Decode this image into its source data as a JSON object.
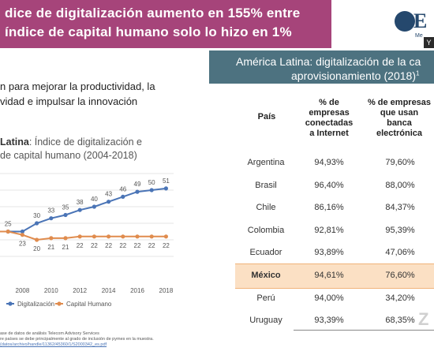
{
  "title": {
    "line1": "dice de digitalización aumento en 155% entre",
    "line2": "índice de capital humano solo lo hizo en 1%"
  },
  "logo": {
    "letter": "E",
    "sub": "Me",
    "corner": "Y"
  },
  "intro": {
    "line1": "n para mejorar la productividad, la",
    "line2": "vidad e impulsar la innovación"
  },
  "chart_data": {
    "type": "line",
    "title_bold": "Latina",
    "title_rest": ": Índice de digitalización e",
    "title_line2": "de capital humano (2004-2018)",
    "x": [
      2006,
      2007,
      2008,
      2009,
      2010,
      2011,
      2012,
      2013,
      2014,
      2015,
      2016,
      2017,
      2018
    ],
    "xticks": [
      "2008",
      "2010",
      "2012",
      "2014",
      "2016",
      "2018"
    ],
    "series": [
      {
        "name": "Digitalización",
        "color": "#4a74b6",
        "values": [
          25,
          25,
          25,
          30,
          33,
          35,
          38,
          40,
          43,
          46,
          49,
          50,
          51
        ],
        "labels": [
          "",
          "25",
          "",
          "30",
          "33",
          "35",
          "38",
          "40",
          "43",
          "46",
          "49",
          "50",
          "51"
        ]
      },
      {
        "name": "Capital Humano",
        "color": "#e08c4e",
        "values": [
          25,
          25,
          23,
          20,
          21,
          21,
          22,
          22,
          22,
          22,
          22,
          22,
          22
        ],
        "labels": [
          "",
          "",
          "23",
          "20",
          "21",
          "21",
          "22",
          "22",
          "22",
          "22",
          "22",
          "22",
          "22"
        ]
      }
    ],
    "ylim": [
      10,
      60
    ],
    "grid": true,
    "legend": "bottom"
  },
  "footnotes": {
    "line1": "ase de datos de análisis Telecom Advisory Services",
    "line2": "re países se debe principalmente al grado de inclusión de pymes en la muestra.",
    "line3": "(datos/archivo/handle/11362/45360/1/S2000342_es.pdf"
  },
  "table": {
    "header_line1": "América Latina: digitalización de la ca",
    "header_line2": "aprovisionamiento (2018)",
    "header_sup": "1",
    "columns": [
      "País",
      "% de empresas conectadas a Internet",
      "% de empresas que usan banca electrónica"
    ],
    "col1_lines": [
      "% de",
      "empresas",
      "conectadas",
      "a Internet"
    ],
    "col2_lines": [
      "% de empresas",
      "que usan",
      "banca",
      "electrónica"
    ],
    "rows": [
      {
        "country": "Argentina",
        "internet": "94,93%",
        "banking": "79,60%"
      },
      {
        "country": "Brasil",
        "internet": "96,40%",
        "banking": "88,00%"
      },
      {
        "country": "Chile",
        "internet": "86,16%",
        "banking": "84,37%"
      },
      {
        "country": "Colombia",
        "internet": "92,81%",
        "banking": "95,39%"
      },
      {
        "country": "Ecuador",
        "internet": "93,89%",
        "banking": "47,06%"
      },
      {
        "country": "México",
        "internet": "94,61%",
        "banking": "76,60%"
      },
      {
        "country": "Perú",
        "internet": "94,00%",
        "banking": "34,20%"
      },
      {
        "country": "Uruguay",
        "internet": "93,39%",
        "banking": "68,35%"
      }
    ],
    "highlight_row": 5
  },
  "watermark": "Z"
}
